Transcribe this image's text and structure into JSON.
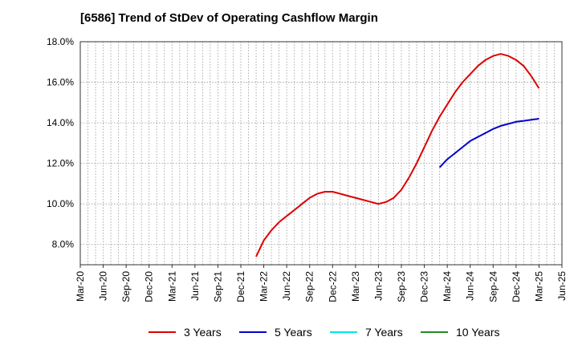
{
  "title": "[6586]  Trend of StDev of Operating Cashflow Margin",
  "chart_data": {
    "type": "line",
    "x": [
      "Mar-20",
      "Jun-20",
      "Sep-20",
      "Dec-20",
      "Mar-21",
      "Jun-21",
      "Sep-21",
      "Dec-21",
      "Mar-22",
      "Jun-22",
      "Sep-22",
      "Dec-22",
      "Mar-23",
      "Jun-23",
      "Sep-23",
      "Dec-23",
      "Mar-24",
      "Jun-24",
      "Sep-24",
      "Dec-24",
      "Mar-25",
      "Jun-25"
    ],
    "ylim": [
      7.0,
      18.0
    ],
    "yticks": [
      8.0,
      10.0,
      12.0,
      14.0,
      16.0,
      18.0
    ],
    "ytick_labels": [
      "8.0%",
      "10.0%",
      "12.0%",
      "14.0%",
      "16.0%",
      "18.0%"
    ],
    "grid": true,
    "legend_position": "bottom",
    "series": [
      {
        "name": "3 Years",
        "color": "#dd0000",
        "points": [
          [
            "Feb-22",
            7.4
          ],
          [
            "Mar-22",
            8.2
          ],
          [
            "Apr-22",
            8.7
          ],
          [
            "May-22",
            9.1
          ],
          [
            "Jun-22",
            9.4
          ],
          [
            "Jul-22",
            9.7
          ],
          [
            "Aug-22",
            10.0
          ],
          [
            "Sep-22",
            10.3
          ],
          [
            "Oct-22",
            10.5
          ],
          [
            "Nov-22",
            10.6
          ],
          [
            "Dec-22",
            10.6
          ],
          [
            "Jan-23",
            10.5
          ],
          [
            "Feb-23",
            10.4
          ],
          [
            "Mar-23",
            10.3
          ],
          [
            "Apr-23",
            10.2
          ],
          [
            "May-23",
            10.1
          ],
          [
            "Jun-23",
            10.0
          ],
          [
            "Jul-23",
            10.1
          ],
          [
            "Aug-23",
            10.3
          ],
          [
            "Sep-23",
            10.7
          ],
          [
            "Oct-23",
            11.3
          ],
          [
            "Nov-23",
            12.0
          ],
          [
            "Dec-23",
            12.8
          ],
          [
            "Jan-24",
            13.6
          ],
          [
            "Feb-24",
            14.3
          ],
          [
            "Mar-24",
            14.9
          ],
          [
            "Apr-24",
            15.5
          ],
          [
            "May-24",
            16.0
          ],
          [
            "Jun-24",
            16.4
          ],
          [
            "Jul-24",
            16.8
          ],
          [
            "Aug-24",
            17.1
          ],
          [
            "Sep-24",
            17.3
          ],
          [
            "Oct-24",
            17.4
          ],
          [
            "Nov-24",
            17.3
          ],
          [
            "Dec-24",
            17.1
          ],
          [
            "Jan-25",
            16.8
          ],
          [
            "Feb-25",
            16.3
          ],
          [
            "Mar-25",
            15.7
          ]
        ]
      },
      {
        "name": "5 Years",
        "color": "#0000cc",
        "points": [
          [
            "Feb-24",
            11.8
          ],
          [
            "Mar-24",
            12.2
          ],
          [
            "Apr-24",
            12.5
          ],
          [
            "May-24",
            12.8
          ],
          [
            "Jun-24",
            13.1
          ],
          [
            "Jul-24",
            13.3
          ],
          [
            "Aug-24",
            13.5
          ],
          [
            "Sep-24",
            13.7
          ],
          [
            "Oct-24",
            13.85
          ],
          [
            "Nov-24",
            13.95
          ],
          [
            "Dec-24",
            14.05
          ],
          [
            "Jan-25",
            14.1
          ],
          [
            "Feb-25",
            14.15
          ],
          [
            "Mar-25",
            14.2
          ]
        ]
      },
      {
        "name": "7 Years",
        "color": "#00e5ee",
        "points": []
      },
      {
        "name": "10 Years",
        "color": "#228b22",
        "points": []
      }
    ]
  }
}
